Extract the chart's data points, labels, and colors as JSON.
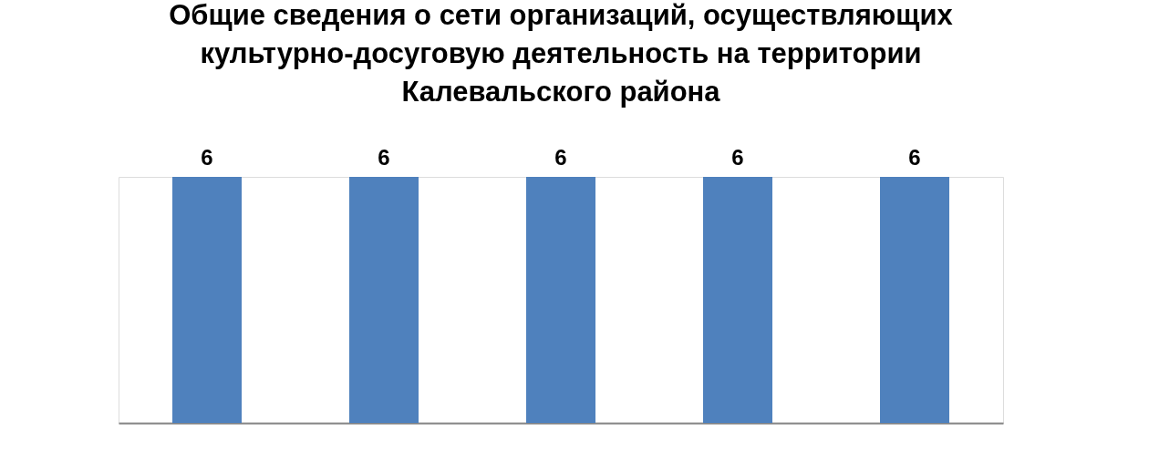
{
  "chart_data": {
    "type": "bar",
    "title": "Общие сведения о сети организаций, осуществляющих\nкультурно-досуговую деятельность на территории\nКалевальского района",
    "categories": [
      null,
      null,
      null,
      null,
      null
    ],
    "values": [
      6,
      6,
      6,
      6,
      6
    ],
    "color": "#4f81bd",
    "data_labels": true,
    "tick_labels": false
  }
}
